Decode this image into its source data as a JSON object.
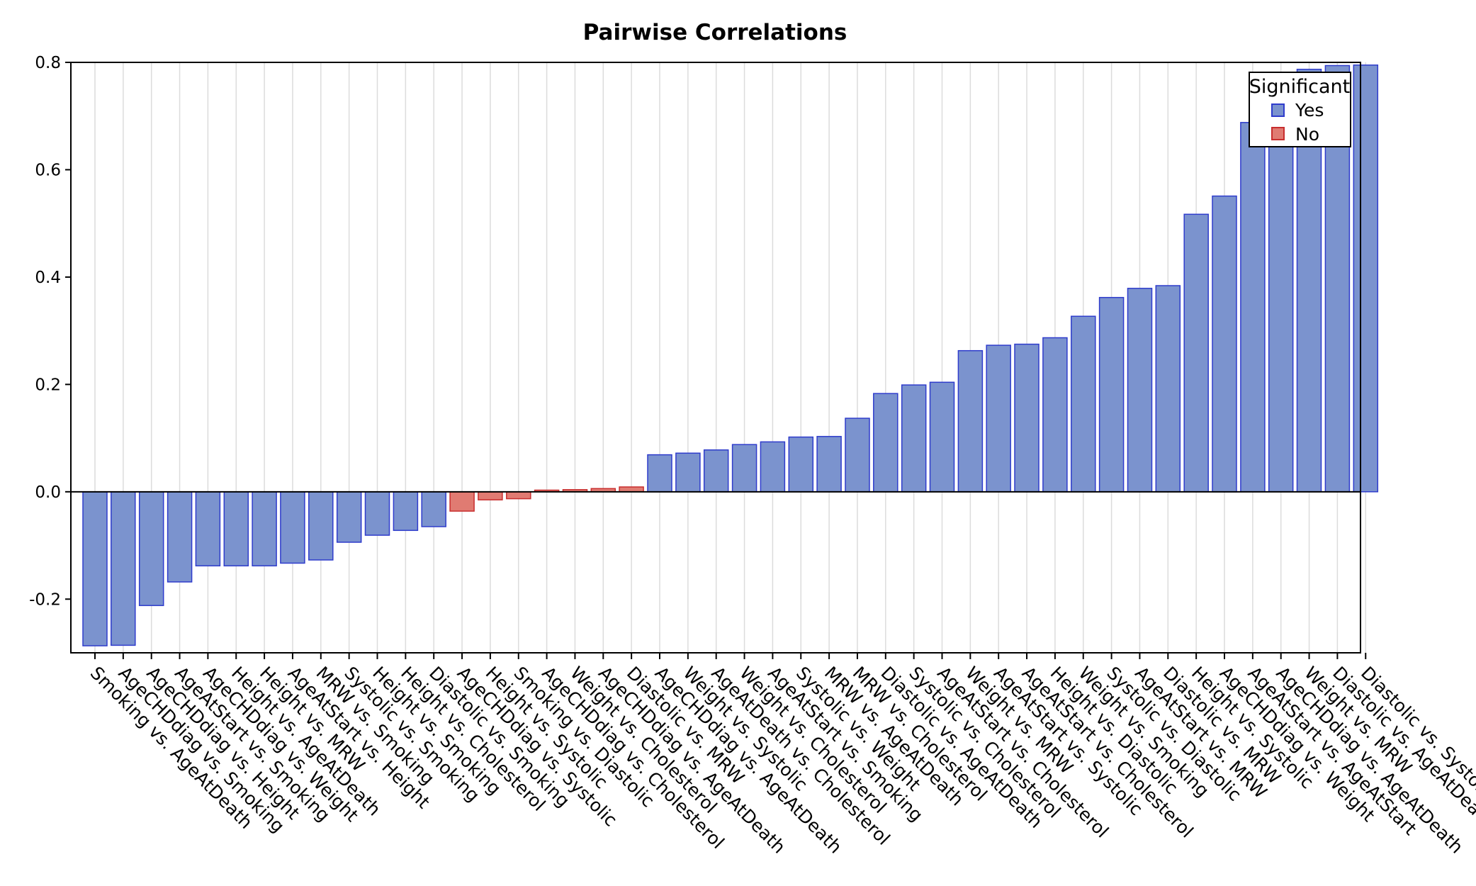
{
  "chart_data": {
    "type": "bar",
    "title": "Pairwise Correlations",
    "xlabel": "",
    "ylabel": "",
    "ylim": [
      -0.3,
      0.8
    ],
    "yticks": [
      -0.2,
      0.0,
      0.2,
      0.4,
      0.6,
      0.8
    ],
    "ytick_labels": [
      "-0.2",
      "0.0",
      "0.2",
      "0.4",
      "0.6",
      "0.8"
    ],
    "grid": "vertical",
    "legend": {
      "title": "Significant",
      "position": "top-right",
      "entries": [
        {
          "label": "Yes",
          "color": "#7b93ce",
          "stroke": "#2f3ccc"
        },
        {
          "label": "No",
          "color": "#e07b72",
          "stroke": "#c82e2e"
        }
      ]
    },
    "categories": [
      "Smoking vs. AgeAtDeath",
      "AgeCHDdiag vs. Smoking",
      "AgeCHDdiag vs. Height",
      "AgeAtStart vs. Smoking",
      "AgeCHDdiag vs. Weight",
      "Height vs. AgeAtDeath",
      "Height vs. MRW",
      "AgeAtStart vs. Height",
      "MRW vs. Smoking",
      "Systolic vs. Smoking",
      "Height vs. Smoking",
      "Height vs. Cholesterol",
      "Diastolic vs. Smoking",
      "AgeCHDdiag vs. Systolic",
      "Height vs. Systolic",
      "Smoking vs. Diastolic",
      "AgeCHDdiag vs. Cholesterol",
      "Weight vs. Cholesterol",
      "AgeCHDdiag vs. AgeAtDeath",
      "Diastolic vs. MRW",
      "AgeCHDdiag vs. AgeAtDeath",
      "Weight vs. Systolic",
      "AgeAtDeath vs. Cholesterol",
      "Weight vs. Cholesterol",
      "AgeAtStart vs. Smoking",
      "Systolic vs. Weight",
      "MRW vs. AgeAtDeath",
      "MRW vs. Cholesterol",
      "Diastolic vs. AgeAtDeath",
      "Systolic vs. Cholesterol",
      "AgeAtStart vs. Cholesterol",
      "Weight vs. MRW",
      "AgeAtStart vs. Systolic",
      "AgeAtStart vs. Cholesterol",
      "Height vs. Diastolic",
      "Weight vs. Smoking",
      "Systolic vs. Diastolic",
      "AgeAtStart vs. MRW",
      "Diastolic vs. MRW",
      "Height vs. Systolic",
      "AgeCHDdiag vs. Weight",
      "AgeAtStart vs. AgeAtStart",
      "AgeCHDdiag vs. AgeAtDeath",
      "Weight vs. MRW",
      "Diastolic vs. AgeAtDeath",
      "Diastolic vs. Systolic"
    ],
    "values": [
      -0.287,
      -0.286,
      -0.212,
      -0.168,
      -0.138,
      -0.138,
      -0.138,
      -0.133,
      -0.127,
      -0.094,
      -0.081,
      -0.072,
      -0.065,
      -0.036,
      -0.015,
      -0.013,
      0.003,
      0.004,
      0.006,
      0.009,
      0.069,
      0.072,
      0.078,
      0.088,
      0.093,
      0.102,
      0.103,
      0.137,
      0.183,
      0.199,
      0.204,
      0.263,
      0.273,
      0.275,
      0.287,
      0.327,
      0.362,
      0.379,
      0.384,
      0.517,
      0.551,
      0.688,
      0.748,
      0.787,
      0.794,
      0.795
    ],
    "significant": [
      "Yes",
      "Yes",
      "Yes",
      "Yes",
      "Yes",
      "Yes",
      "Yes",
      "Yes",
      "Yes",
      "Yes",
      "Yes",
      "Yes",
      "Yes",
      "No",
      "No",
      "No",
      "No",
      "No",
      "No",
      "No",
      "Yes",
      "Yes",
      "Yes",
      "Yes",
      "Yes",
      "Yes",
      "Yes",
      "Yes",
      "Yes",
      "Yes",
      "Yes",
      "Yes",
      "Yes",
      "Yes",
      "Yes",
      "Yes",
      "Yes",
      "Yes",
      "Yes",
      "Yes",
      "Yes",
      "Yes",
      "Yes",
      "Yes",
      "Yes",
      "Yes"
    ]
  }
}
